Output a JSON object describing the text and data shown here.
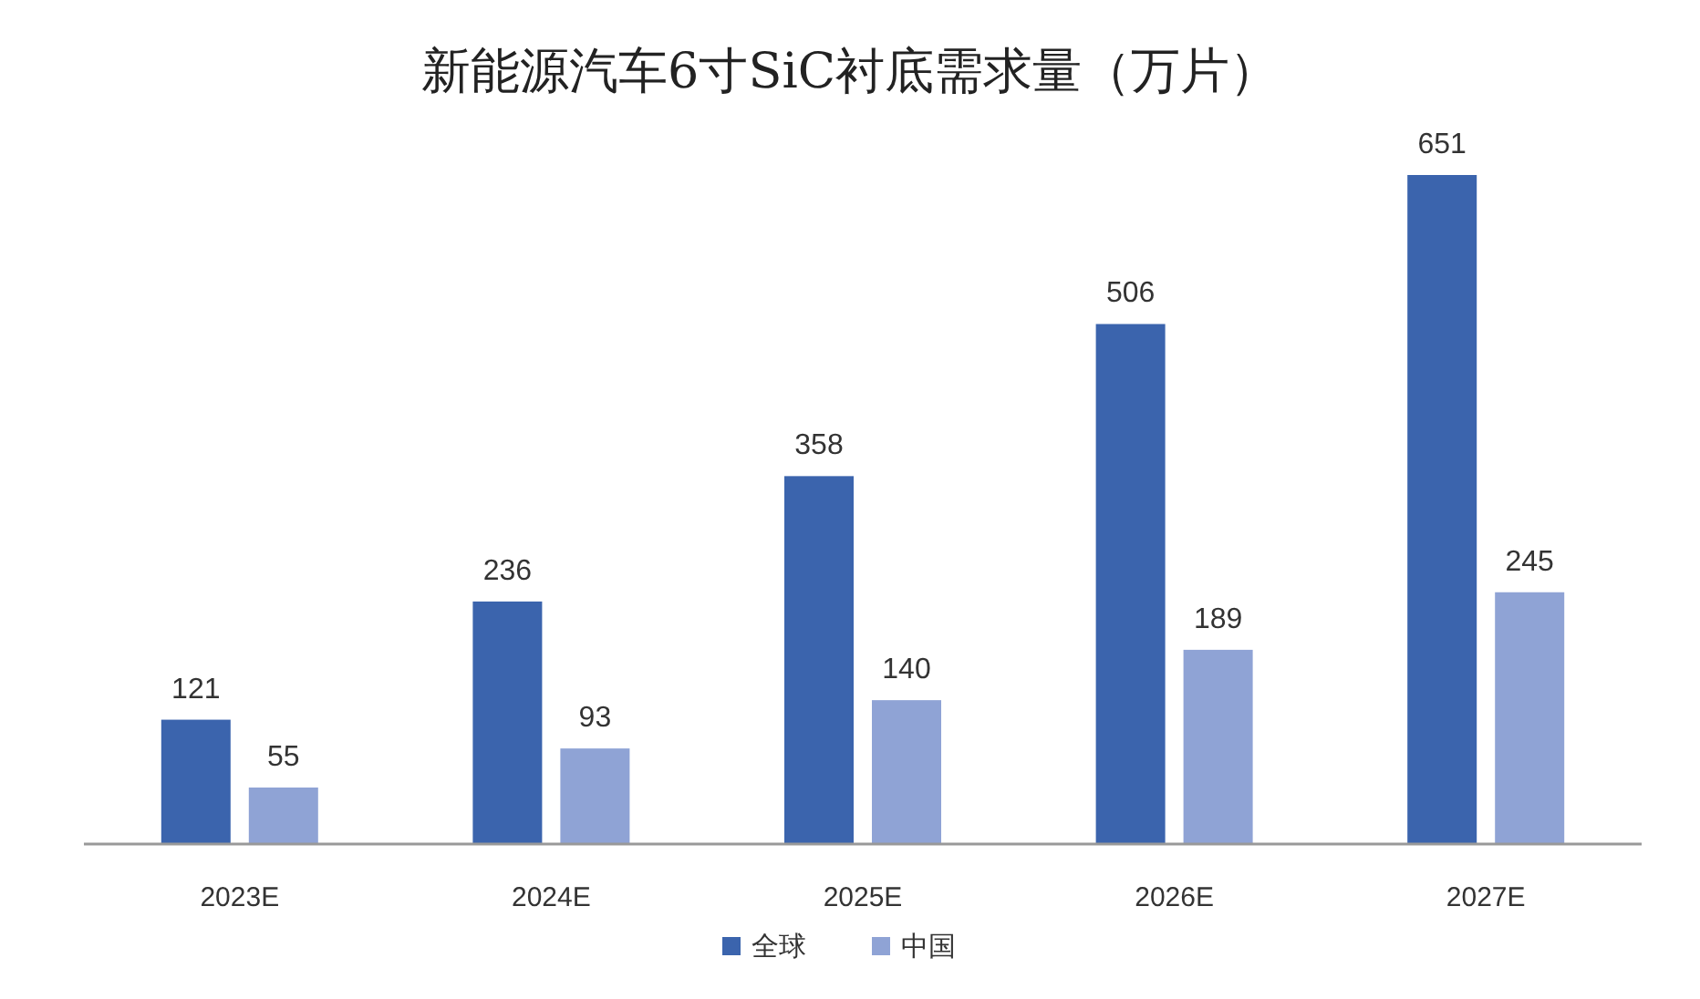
{
  "chart_data": {
    "type": "bar",
    "title": "新能源汽车6寸SiC衬底需求量（万片）",
    "categories": [
      "2023E",
      "2024E",
      "2025E",
      "2026E",
      "2027E"
    ],
    "series": [
      {
        "name": "全球",
        "color": "#3b64ad",
        "values": [
          121,
          236,
          358,
          506,
          651
        ]
      },
      {
        "name": "中国",
        "color": "#8fa3d5",
        "values": [
          55,
          93,
          140,
          189,
          245
        ]
      }
    ],
    "data_labels": true,
    "legend": "bottom"
  }
}
